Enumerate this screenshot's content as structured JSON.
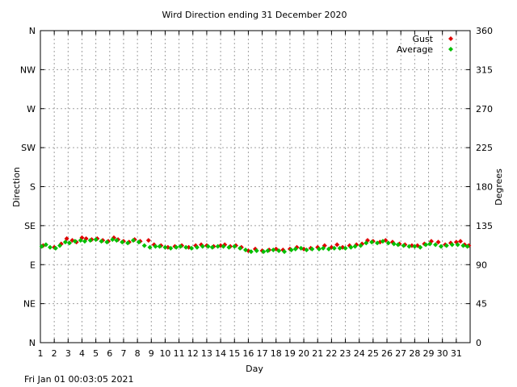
{
  "footer": {
    "timestamp": "Fri Jan 01 00:03:05 2021"
  },
  "chart_data": {
    "type": "scatter",
    "title": "Wird Direction ending 31 December 2020",
    "xlabel": "Day",
    "ylabel_left": "Direction",
    "ylabel_right": "Degrees",
    "xlim": [
      1,
      32
    ],
    "ylim": [
      0,
      360
    ],
    "x_ticks": [
      1,
      2,
      3,
      4,
      5,
      6,
      7,
      8,
      9,
      10,
      11,
      12,
      13,
      14,
      15,
      16,
      17,
      18,
      19,
      20,
      21,
      22,
      23,
      24,
      25,
      26,
      27,
      28,
      29,
      30,
      31
    ],
    "y_ticks_left": [
      {
        "value": 0,
        "label": "N"
      },
      {
        "value": 45,
        "label": "NE"
      },
      {
        "value": 90,
        "label": "E"
      },
      {
        "value": 135,
        "label": "SE"
      },
      {
        "value": 180,
        "label": "S"
      },
      {
        "value": 225,
        "label": "SW"
      },
      {
        "value": 270,
        "label": "W"
      },
      {
        "value": 315,
        "label": "NW"
      },
      {
        "value": 360,
        "label": "N"
      }
    ],
    "y_ticks_right": [
      0,
      45,
      90,
      135,
      180,
      225,
      270,
      315,
      360
    ],
    "grid": true,
    "legend": "top-right",
    "series": [
      {
        "name": "Gust",
        "color": "#e00000",
        "points": [
          [
            1.2,
            112
          ],
          [
            2.0,
            110
          ],
          [
            2.5,
            114
          ],
          [
            2.9,
            120
          ],
          [
            3.3,
            118
          ],
          [
            3.6,
            116
          ],
          [
            4.0,
            121
          ],
          [
            4.3,
            120
          ],
          [
            4.7,
            119
          ],
          [
            5.1,
            120
          ],
          [
            5.5,
            118
          ],
          [
            5.9,
            117
          ],
          [
            6.3,
            121
          ],
          [
            6.6,
            119
          ],
          [
            7.0,
            117
          ],
          [
            7.4,
            116
          ],
          [
            7.8,
            119
          ],
          [
            8.2,
            117
          ],
          [
            8.8,
            118
          ],
          [
            9.2,
            113
          ],
          [
            9.7,
            112
          ],
          [
            10.2,
            110
          ],
          [
            10.7,
            111
          ],
          [
            11.2,
            112
          ],
          [
            11.7,
            110
          ],
          [
            12.2,
            112
          ],
          [
            12.6,
            113
          ],
          [
            13.0,
            112
          ],
          [
            13.5,
            111
          ],
          [
            14.0,
            112
          ],
          [
            14.3,
            113
          ],
          [
            14.7,
            111
          ],
          [
            15.1,
            112
          ],
          [
            15.5,
            110
          ],
          [
            16.0,
            106
          ],
          [
            16.5,
            108
          ],
          [
            17.0,
            106
          ],
          [
            17.5,
            107
          ],
          [
            18.0,
            108
          ],
          [
            18.5,
            107
          ],
          [
            19.0,
            108
          ],
          [
            19.5,
            110
          ],
          [
            20.0,
            108
          ],
          [
            20.5,
            109
          ],
          [
            21.0,
            110
          ],
          [
            21.5,
            112
          ],
          [
            22.0,
            110
          ],
          [
            22.4,
            113
          ],
          [
            22.8,
            110
          ],
          [
            23.3,
            112
          ],
          [
            23.8,
            113
          ],
          [
            24.2,
            114
          ],
          [
            24.6,
            118
          ],
          [
            25.0,
            117
          ],
          [
            25.5,
            116
          ],
          [
            25.9,
            118
          ],
          [
            26.4,
            116
          ],
          [
            26.9,
            114
          ],
          [
            27.3,
            113
          ],
          [
            27.8,
            112
          ],
          [
            28.2,
            112
          ],
          [
            28.7,
            114
          ],
          [
            29.2,
            117
          ],
          [
            29.7,
            116
          ],
          [
            30.2,
            113
          ],
          [
            30.6,
            115
          ],
          [
            31.0,
            116
          ],
          [
            31.3,
            117
          ],
          [
            31.6,
            113
          ],
          [
            31.9,
            112
          ]
        ]
      },
      {
        "name": "Average",
        "color": "#00c000",
        "points": [
          [
            1.1,
            111
          ],
          [
            1.4,
            113
          ],
          [
            1.7,
            110
          ],
          [
            2.1,
            109
          ],
          [
            2.4,
            112
          ],
          [
            2.8,
            116
          ],
          [
            3.1,
            115
          ],
          [
            3.5,
            117
          ],
          [
            3.9,
            118
          ],
          [
            4.2,
            117
          ],
          [
            4.6,
            118
          ],
          [
            5.0,
            119
          ],
          [
            5.4,
            117
          ],
          [
            5.8,
            116
          ],
          [
            6.2,
            119
          ],
          [
            6.5,
            118
          ],
          [
            6.9,
            116
          ],
          [
            7.3,
            115
          ],
          [
            7.7,
            118
          ],
          [
            8.1,
            116
          ],
          [
            8.5,
            112
          ],
          [
            8.9,
            110
          ],
          [
            9.3,
            111
          ],
          [
            9.6,
            111
          ],
          [
            10.0,
            110
          ],
          [
            10.4,
            109
          ],
          [
            10.8,
            110
          ],
          [
            11.1,
            111
          ],
          [
            11.5,
            110
          ],
          [
            11.9,
            109
          ],
          [
            12.3,
            110
          ],
          [
            12.7,
            111
          ],
          [
            13.1,
            111
          ],
          [
            13.4,
            110
          ],
          [
            13.8,
            111
          ],
          [
            14.2,
            111
          ],
          [
            14.6,
            110
          ],
          [
            15.0,
            111
          ],
          [
            15.4,
            109
          ],
          [
            15.8,
            107
          ],
          [
            16.2,
            105
          ],
          [
            16.6,
            106
          ],
          [
            17.1,
            105
          ],
          [
            17.4,
            106
          ],
          [
            17.8,
            107
          ],
          [
            18.2,
            106
          ],
          [
            18.6,
            105
          ],
          [
            19.1,
            107
          ],
          [
            19.4,
            108
          ],
          [
            19.8,
            109
          ],
          [
            20.2,
            107
          ],
          [
            20.6,
            108
          ],
          [
            21.1,
            108
          ],
          [
            21.4,
            109
          ],
          [
            21.8,
            108
          ],
          [
            22.2,
            109
          ],
          [
            22.6,
            109
          ],
          [
            23.0,
            109
          ],
          [
            23.4,
            110
          ],
          [
            23.7,
            111
          ],
          [
            24.1,
            112
          ],
          [
            24.5,
            115
          ],
          [
            24.9,
            116
          ],
          [
            25.3,
            115
          ],
          [
            25.7,
            117
          ],
          [
            26.1,
            115
          ],
          [
            26.5,
            114
          ],
          [
            26.8,
            113
          ],
          [
            27.2,
            112
          ],
          [
            27.6,
            111
          ],
          [
            28.0,
            111
          ],
          [
            28.4,
            110
          ],
          [
            28.8,
            113
          ],
          [
            29.1,
            114
          ],
          [
            29.5,
            113
          ],
          [
            29.9,
            111
          ],
          [
            30.3,
            112
          ],
          [
            30.7,
            113
          ],
          [
            31.1,
            113
          ],
          [
            31.5,
            112
          ],
          [
            31.8,
            111
          ]
        ]
      }
    ]
  }
}
